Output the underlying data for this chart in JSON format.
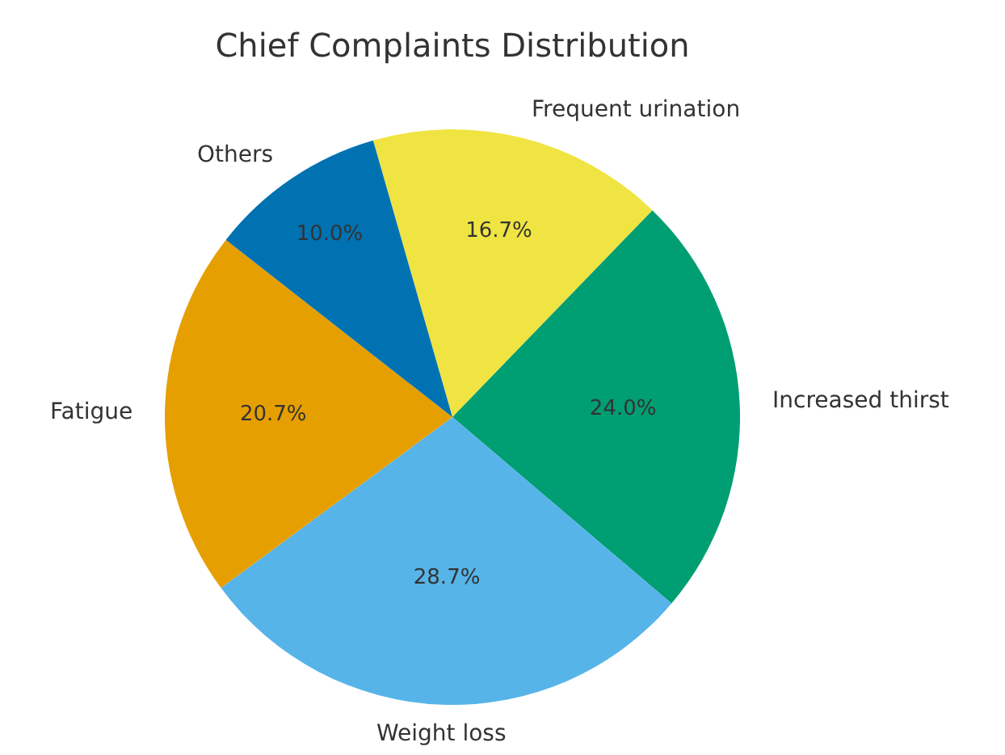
{
  "chart_data": {
    "type": "pie",
    "title": "Chief Complaints Distribution",
    "categories": [
      "Frequent urination",
      "Increased thirst",
      "Weight loss",
      "Fatigue",
      "Others"
    ],
    "values": [
      16.7,
      24.0,
      28.7,
      20.7,
      10.0
    ],
    "value_labels": [
      "16.7%",
      "24.0%",
      "28.7%",
      "20.7%",
      "10.0%"
    ],
    "colors": [
      "#f0e442",
      "#009e73",
      "#56b4e9",
      "#e69f00",
      "#0072b2"
    ],
    "legend": false
  }
}
